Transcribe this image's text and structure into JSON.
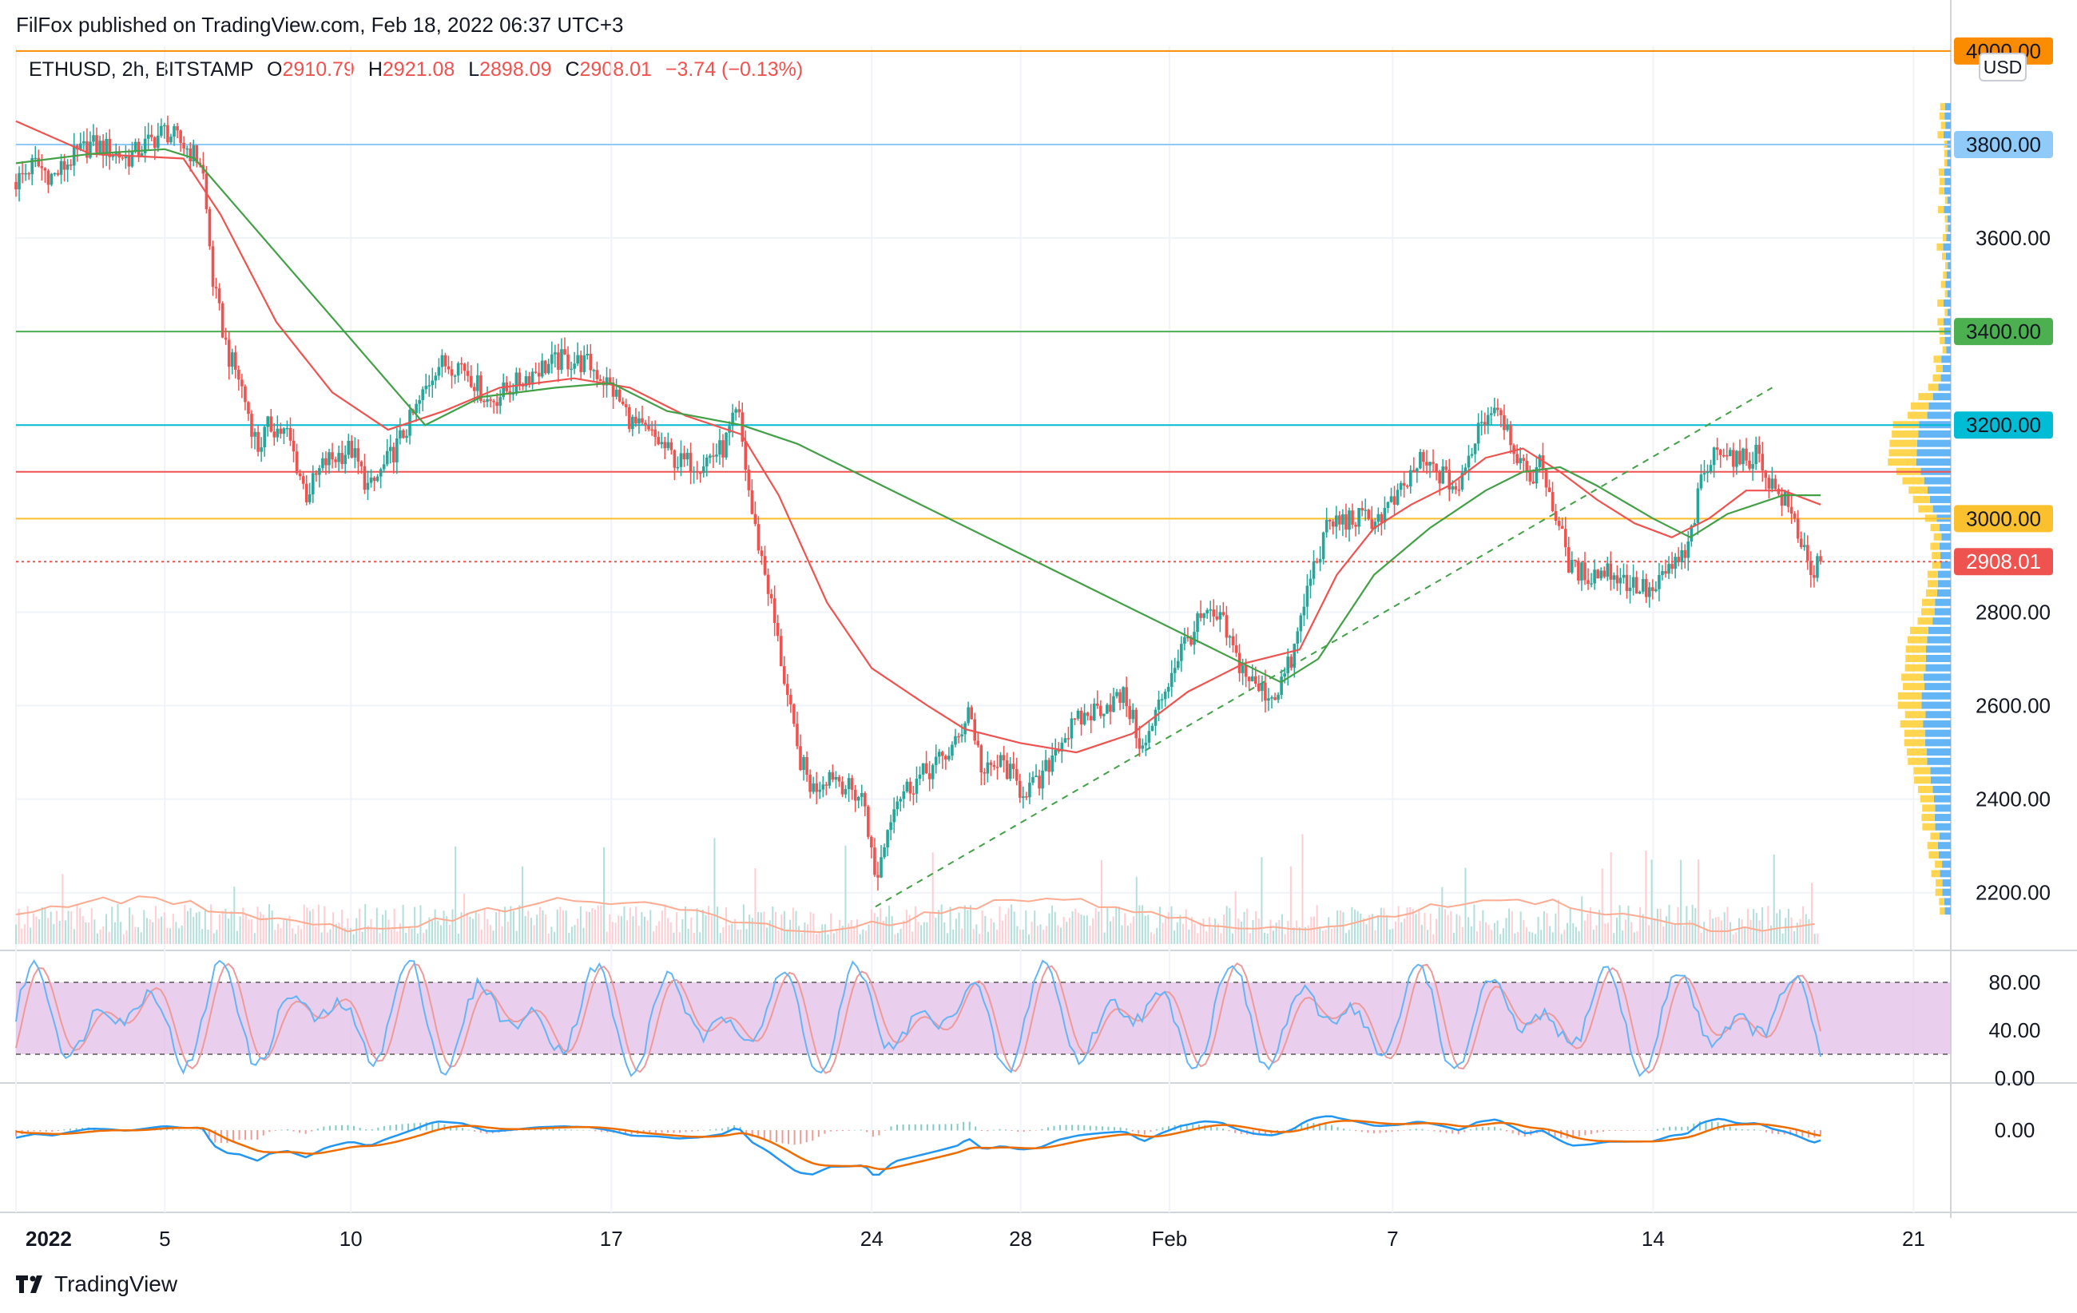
{
  "header": {
    "publisher": "FilFox published on TradingView.com, Feb 18, 2022 06:37 UTC+3"
  },
  "legend": {
    "symbol": "ETHUSD, 2h, BITSTAMP",
    "open_label": "O",
    "open": "2910.79",
    "high_label": "H",
    "high": "2921.08",
    "low_label": "L",
    "low": "2898.09",
    "close_label": "C",
    "close": "2908.01",
    "change": "−3.74 (−0.13%)"
  },
  "currency_button": "USD",
  "footer": {
    "brand": "TradingView"
  },
  "colors": {
    "up": "#26a69a",
    "down": "#ef5350",
    "ma_fast": "#ef5350",
    "ma_slow": "#43a047",
    "level_4000": "#fb8c00",
    "level_3800": "#90caf9",
    "level_3400": "#4caf50",
    "level_3200": "#00bcd4",
    "level_3100": "#ef5350",
    "level_3000": "#fbc02d",
    "stoch_band": "#e1bee7",
    "macd_line": "#2196f3",
    "signal_line": "#ef6c00"
  },
  "chart_data": {
    "type": "candlestick",
    "symbol": "ETHUSD",
    "interval": "2h",
    "exchange": "BITSTAMP",
    "y_axis": {
      "ticks": [
        "2200.00",
        "2400.00",
        "2600.00",
        "2800.00",
        "3000.00",
        "3200.00",
        "3400.00",
        "3600.00",
        "3800.00",
        "4000.00"
      ],
      "range": [
        2080,
        4010
      ]
    },
    "x_axis": {
      "ticks": [
        "2022",
        "5",
        "10",
        "17",
        "24",
        "28",
        "Feb",
        "7",
        "14",
        "21"
      ],
      "tick_days": [
        1,
        5,
        10,
        17,
        24,
        28,
        32,
        38,
        45,
        52
      ],
      "range_days": [
        1,
        53
      ]
    },
    "price_path": [
      [
        1.0,
        3720
      ],
      [
        1.5,
        3760
      ],
      [
        2.0,
        3730
      ],
      [
        2.5,
        3770
      ],
      [
        3.0,
        3800
      ],
      [
        3.5,
        3790
      ],
      [
        4.0,
        3770
      ],
      [
        4.5,
        3800
      ],
      [
        5.0,
        3830
      ],
      [
        5.5,
        3800
      ],
      [
        6.0,
        3760
      ],
      [
        6.3,
        3500
      ],
      [
        6.7,
        3350
      ],
      [
        7.0,
        3300
      ],
      [
        7.5,
        3150
      ],
      [
        7.8,
        3200
      ],
      [
        8.3,
        3180
      ],
      [
        8.8,
        3050
      ],
      [
        9.3,
        3120
      ],
      [
        10.0,
        3150
      ],
      [
        10.5,
        3060
      ],
      [
        11.2,
        3150
      ],
      [
        11.8,
        3240
      ],
      [
        12.3,
        3330
      ],
      [
        13.0,
        3330
      ],
      [
        13.7,
        3250
      ],
      [
        14.3,
        3280
      ],
      [
        15.0,
        3320
      ],
      [
        15.7,
        3340
      ],
      [
        16.4,
        3330
      ],
      [
        17.0,
        3280
      ],
      [
        17.6,
        3200
      ],
      [
        18.2,
        3170
      ],
      [
        18.8,
        3120
      ],
      [
        19.4,
        3120
      ],
      [
        20.0,
        3150
      ],
      [
        20.4,
        3230
      ],
      [
        20.8,
        3000
      ],
      [
        21.2,
        2860
      ],
      [
        21.6,
        2680
      ],
      [
        22.0,
        2500
      ],
      [
        22.4,
        2420
      ],
      [
        22.9,
        2460
      ],
      [
        23.4,
        2420
      ],
      [
        23.8,
        2400
      ],
      [
        24.1,
        2220
      ],
      [
        24.6,
        2400
      ],
      [
        25.2,
        2440
      ],
      [
        25.8,
        2480
      ],
      [
        26.3,
        2520
      ],
      [
        26.6,
        2600
      ],
      [
        27.0,
        2450
      ],
      [
        27.5,
        2480
      ],
      [
        28.0,
        2420
      ],
      [
        28.5,
        2430
      ],
      [
        29.0,
        2520
      ],
      [
        29.6,
        2570
      ],
      [
        30.2,
        2600
      ],
      [
        30.8,
        2620
      ],
      [
        31.3,
        2500
      ],
      [
        31.8,
        2620
      ],
      [
        32.3,
        2720
      ],
      [
        32.9,
        2790
      ],
      [
        33.4,
        2780
      ],
      [
        33.8,
        2700
      ],
      [
        34.3,
        2640
      ],
      [
        34.8,
        2620
      ],
      [
        35.3,
        2700
      ],
      [
        35.8,
        2880
      ],
      [
        36.3,
        2990
      ],
      [
        37.0,
        3000
      ],
      [
        37.6,
        3000
      ],
      [
        38.2,
        3050
      ],
      [
        38.7,
        3120
      ],
      [
        39.2,
        3100
      ],
      [
        39.8,
        3060
      ],
      [
        40.3,
        3200
      ],
      [
        40.8,
        3250
      ],
      [
        41.2,
        3170
      ],
      [
        41.6,
        3080
      ],
      [
        42.0,
        3120
      ],
      [
        42.4,
        3000
      ],
      [
        42.8,
        2890
      ],
      [
        43.3,
        2880
      ],
      [
        43.8,
        2890
      ],
      [
        44.4,
        2860
      ],
      [
        45.0,
        2840
      ],
      [
        45.5,
        2900
      ],
      [
        45.9,
        2920
      ],
      [
        46.3,
        3080
      ],
      [
        46.8,
        3160
      ],
      [
        47.3,
        3120
      ],
      [
        47.8,
        3140
      ],
      [
        48.2,
        3070
      ],
      [
        48.6,
        3030
      ],
      [
        49.0,
        2950
      ],
      [
        49.3,
        2880
      ],
      [
        49.5,
        2908.01
      ]
    ],
    "ma_fast_path": [
      [
        1.0,
        3850
      ],
      [
        3.0,
        3780
      ],
      [
        5.5,
        3770
      ],
      [
        6.5,
        3650
      ],
      [
        8.0,
        3420
      ],
      [
        9.5,
        3270
      ],
      [
        11.0,
        3190
      ],
      [
        12.5,
        3230
      ],
      [
        14.0,
        3280
      ],
      [
        16.0,
        3300
      ],
      [
        17.5,
        3280
      ],
      [
        19.0,
        3220
      ],
      [
        20.5,
        3180
      ],
      [
        21.5,
        3050
      ],
      [
        22.8,
        2820
      ],
      [
        24.0,
        2680
      ],
      [
        25.5,
        2600
      ],
      [
        26.5,
        2550
      ],
      [
        28.0,
        2520
      ],
      [
        29.5,
        2500
      ],
      [
        31.0,
        2540
      ],
      [
        32.5,
        2630
      ],
      [
        34.0,
        2690
      ],
      [
        35.5,
        2720
      ],
      [
        36.5,
        2880
      ],
      [
        37.5,
        2980
      ],
      [
        38.5,
        3030
      ],
      [
        39.5,
        3070
      ],
      [
        40.5,
        3130
      ],
      [
        41.5,
        3150
      ],
      [
        42.5,
        3100
      ],
      [
        43.5,
        3040
      ],
      [
        44.5,
        2990
      ],
      [
        45.5,
        2960
      ],
      [
        46.5,
        3000
      ],
      [
        47.5,
        3060
      ],
      [
        48.5,
        3060
      ],
      [
        49.5,
        3030
      ]
    ],
    "ma_slow_path": [
      [
        1.0,
        3760
      ],
      [
        3.0,
        3780
      ],
      [
        5.0,
        3790
      ],
      [
        5.8,
        3770
      ],
      [
        12.0,
        3200
      ],
      [
        13.5,
        3260
      ],
      [
        15.5,
        3280
      ],
      [
        17.0,
        3290
      ],
      [
        18.5,
        3230
      ],
      [
        20.5,
        3200
      ],
      [
        22.0,
        3160
      ],
      [
        35.0,
        2650
      ],
      [
        36.0,
        2700
      ],
      [
        37.5,
        2880
      ],
      [
        39.0,
        2980
      ],
      [
        40.5,
        3060
      ],
      [
        41.5,
        3100
      ],
      [
        42.5,
        3110
      ],
      [
        43.5,
        3070
      ],
      [
        45.0,
        3000
      ],
      [
        46.0,
        2960
      ],
      [
        47.0,
        3010
      ],
      [
        48.5,
        3050
      ],
      [
        49.5,
        3050
      ]
    ],
    "horizontal_levels": [
      {
        "price": 4000,
        "label": "4000.00",
        "color_key": "level_4000"
      },
      {
        "price": 3800,
        "label": "3800.00",
        "color_key": "level_3800"
      },
      {
        "price": 3400,
        "label": "3400.00",
        "color_key": "level_3400"
      },
      {
        "price": 3200,
        "label": "3200.00",
        "color_key": "level_3200"
      },
      {
        "price": 3100,
        "label": "",
        "color_key": "level_3100"
      },
      {
        "price": 3000,
        "label": "3000.00",
        "color_key": "level_3000"
      }
    ],
    "last_price": {
      "price": 2908.01,
      "label": "2908.01"
    },
    "trendline": {
      "from": [
        24.1,
        2170
      ],
      "to": [
        48.2,
        3280
      ]
    },
    "stochastic": {
      "ticks": [
        "80.00",
        "40.00",
        "0.00"
      ],
      "upper": 80,
      "lower": 20,
      "range": [
        0,
        100
      ]
    },
    "macd": {
      "ticks": [
        "0.00"
      ]
    }
  }
}
